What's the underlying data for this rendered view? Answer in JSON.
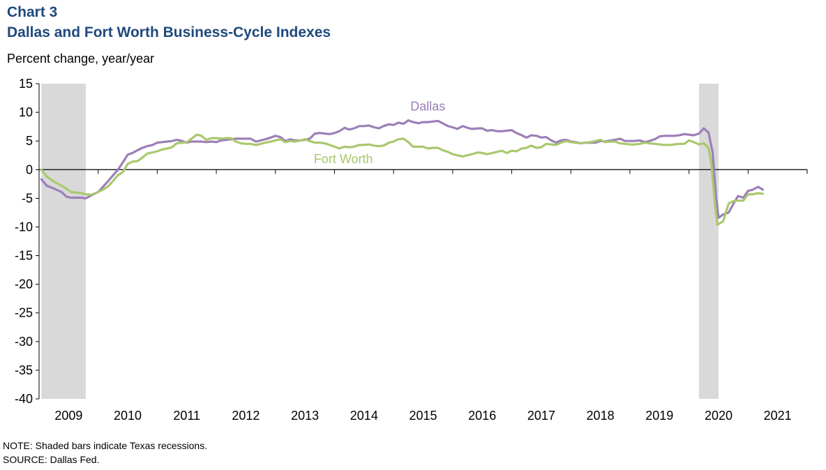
{
  "chart_data": {
    "type": "line",
    "chart_number": "Chart 3",
    "title": "Dallas and Fort Worth Business-Cycle Indexes",
    "ylabel": "Percent change,  year/year",
    "xlabel": "",
    "ylim": [
      -40,
      15
    ],
    "xlim": [
      2008.5,
      2021.5
    ],
    "yticks": [
      "15",
      "10",
      "5",
      "0",
      "-5",
      "-10",
      "-15",
      "-20",
      "-25",
      "-30",
      "-35",
      "-40"
    ],
    "xticks": [
      "2009",
      "2010",
      "2011",
      "2012",
      "2013",
      "2014",
      "2015",
      "2016",
      "2017",
      "2018",
      "2019",
      "2020",
      "2021"
    ],
    "grid": false,
    "recessions": [
      {
        "start": 2008.54,
        "end": 2009.29
      },
      {
        "start": 2019.67,
        "end": 2020.0
      }
    ],
    "series": [
      {
        "name": "Dallas",
        "color": "#9c7fb8",
        "points": [
          [
            2008.54,
            -1.7
          ],
          [
            2008.63,
            -2.8
          ],
          [
            2008.75,
            -3.3
          ],
          [
            2008.88,
            -3.9
          ],
          [
            2008.96,
            -4.7
          ],
          [
            2009.04,
            -4.9
          ],
          [
            2009.13,
            -4.9
          ],
          [
            2009.21,
            -4.9
          ],
          [
            2009.29,
            -5.0
          ],
          [
            2009.38,
            -4.5
          ],
          [
            2009.5,
            -3.9
          ],
          [
            2009.58,
            -3.0
          ],
          [
            2009.67,
            -2.0
          ],
          [
            2009.75,
            -1.0
          ],
          [
            2009.83,
            -0.1
          ],
          [
            2009.92,
            1.3
          ],
          [
            2010.0,
            2.6
          ],
          [
            2010.08,
            2.9
          ],
          [
            2010.17,
            3.4
          ],
          [
            2010.25,
            3.8
          ],
          [
            2010.33,
            4.1
          ],
          [
            2010.42,
            4.3
          ],
          [
            2010.5,
            4.7
          ],
          [
            2010.58,
            4.8
          ],
          [
            2010.67,
            4.9
          ],
          [
            2010.75,
            5.0
          ],
          [
            2010.83,
            5.2
          ],
          [
            2010.92,
            5.0
          ],
          [
            2011.0,
            4.7
          ],
          [
            2011.08,
            4.9
          ],
          [
            2011.17,
            4.9
          ],
          [
            2011.25,
            4.9
          ],
          [
            2011.33,
            4.8
          ],
          [
            2011.42,
            4.9
          ],
          [
            2011.5,
            4.8
          ],
          [
            2011.58,
            5.1
          ],
          [
            2011.67,
            5.2
          ],
          [
            2011.75,
            5.3
          ],
          [
            2011.83,
            5.4
          ],
          [
            2011.92,
            5.4
          ],
          [
            2012.0,
            5.4
          ],
          [
            2012.08,
            5.4
          ],
          [
            2012.17,
            4.9
          ],
          [
            2012.25,
            5.1
          ],
          [
            2012.33,
            5.3
          ],
          [
            2012.42,
            5.6
          ],
          [
            2012.5,
            5.9
          ],
          [
            2012.58,
            5.7
          ],
          [
            2012.67,
            5.0
          ],
          [
            2012.75,
            5.3
          ],
          [
            2012.83,
            5.1
          ],
          [
            2012.92,
            5.1
          ],
          [
            2013.0,
            5.2
          ],
          [
            2013.08,
            5.4
          ],
          [
            2013.17,
            6.3
          ],
          [
            2013.25,
            6.4
          ],
          [
            2013.33,
            6.3
          ],
          [
            2013.42,
            6.2
          ],
          [
            2013.5,
            6.4
          ],
          [
            2013.58,
            6.7
          ],
          [
            2013.67,
            7.3
          ],
          [
            2013.75,
            7.0
          ],
          [
            2013.83,
            7.2
          ],
          [
            2013.92,
            7.6
          ],
          [
            2014.0,
            7.6
          ],
          [
            2014.08,
            7.7
          ],
          [
            2014.17,
            7.4
          ],
          [
            2014.25,
            7.2
          ],
          [
            2014.33,
            7.6
          ],
          [
            2014.42,
            7.9
          ],
          [
            2014.5,
            7.8
          ],
          [
            2014.58,
            8.2
          ],
          [
            2014.67,
            8.0
          ],
          [
            2014.75,
            8.6
          ],
          [
            2014.83,
            8.3
          ],
          [
            2014.92,
            8.1
          ],
          [
            2015.0,
            8.3
          ],
          [
            2015.08,
            8.3
          ],
          [
            2015.17,
            8.4
          ],
          [
            2015.25,
            8.5
          ],
          [
            2015.33,
            8.1
          ],
          [
            2015.42,
            7.6
          ],
          [
            2015.5,
            7.4
          ],
          [
            2015.58,
            7.1
          ],
          [
            2015.67,
            7.6
          ],
          [
            2015.75,
            7.3
          ],
          [
            2015.83,
            7.1
          ],
          [
            2015.92,
            7.2
          ],
          [
            2016.0,
            7.2
          ],
          [
            2016.08,
            6.8
          ],
          [
            2016.17,
            6.9
          ],
          [
            2016.25,
            6.7
          ],
          [
            2016.33,
            6.7
          ],
          [
            2016.42,
            6.8
          ],
          [
            2016.5,
            6.9
          ],
          [
            2016.58,
            6.4
          ],
          [
            2016.67,
            6.0
          ],
          [
            2016.75,
            5.6
          ],
          [
            2016.83,
            6.0
          ],
          [
            2016.92,
            5.9
          ],
          [
            2017.0,
            5.6
          ],
          [
            2017.08,
            5.7
          ],
          [
            2017.17,
            5.1
          ],
          [
            2017.25,
            4.7
          ],
          [
            2017.33,
            5.1
          ],
          [
            2017.42,
            5.2
          ],
          [
            2017.5,
            4.9
          ],
          [
            2017.58,
            4.8
          ],
          [
            2017.67,
            4.6
          ],
          [
            2017.75,
            4.7
          ],
          [
            2017.83,
            4.7
          ],
          [
            2017.92,
            4.7
          ],
          [
            2018.0,
            5.0
          ],
          [
            2018.08,
            4.9
          ],
          [
            2018.17,
            5.1
          ],
          [
            2018.25,
            5.2
          ],
          [
            2018.33,
            5.4
          ],
          [
            2018.42,
            5.0
          ],
          [
            2018.5,
            5.0
          ],
          [
            2018.58,
            5.0
          ],
          [
            2018.67,
            5.1
          ],
          [
            2018.75,
            4.8
          ],
          [
            2018.83,
            5.0
          ],
          [
            2018.92,
            5.3
          ],
          [
            2019.0,
            5.8
          ],
          [
            2019.08,
            5.9
          ],
          [
            2019.17,
            5.9
          ],
          [
            2019.25,
            5.9
          ],
          [
            2019.33,
            6.0
          ],
          [
            2019.42,
            6.2
          ],
          [
            2019.5,
            6.1
          ],
          [
            2019.58,
            6.0
          ],
          [
            2019.67,
            6.3
          ],
          [
            2019.75,
            7.2
          ],
          [
            2019.83,
            6.5
          ],
          [
            2019.9,
            3.0
          ],
          [
            2019.96,
            -5.0
          ],
          [
            2020.0,
            -8.4
          ],
          [
            2020.08,
            -7.8
          ],
          [
            2020.17,
            -7.5
          ],
          [
            2020.25,
            -6.0
          ],
          [
            2020.33,
            -4.6
          ],
          [
            2020.42,
            -4.9
          ],
          [
            2020.5,
            -3.7
          ],
          [
            2020.58,
            -3.5
          ],
          [
            2020.67,
            -3.0
          ],
          [
            2020.75,
            -3.5
          ]
        ]
      },
      {
        "name": "Fort Worth",
        "color": "#a9c86d",
        "points": [
          [
            2008.54,
            0.0
          ],
          [
            2008.63,
            -1.2
          ],
          [
            2008.75,
            -2.1
          ],
          [
            2008.88,
            -2.8
          ],
          [
            2008.96,
            -3.3
          ],
          [
            2009.04,
            -3.9
          ],
          [
            2009.13,
            -4.0
          ],
          [
            2009.21,
            -4.1
          ],
          [
            2009.29,
            -4.3
          ],
          [
            2009.38,
            -4.4
          ],
          [
            2009.5,
            -3.9
          ],
          [
            2009.58,
            -3.5
          ],
          [
            2009.67,
            -2.9
          ],
          [
            2009.75,
            -2.0
          ],
          [
            2009.83,
            -1.0
          ],
          [
            2009.92,
            -0.4
          ],
          [
            2010.0,
            1.0
          ],
          [
            2010.08,
            1.4
          ],
          [
            2010.17,
            1.5
          ],
          [
            2010.25,
            2.1
          ],
          [
            2010.33,
            2.8
          ],
          [
            2010.42,
            3.0
          ],
          [
            2010.5,
            3.2
          ],
          [
            2010.58,
            3.5
          ],
          [
            2010.67,
            3.7
          ],
          [
            2010.75,
            3.9
          ],
          [
            2010.83,
            4.6
          ],
          [
            2010.92,
            4.7
          ],
          [
            2011.0,
            4.8
          ],
          [
            2011.08,
            5.4
          ],
          [
            2011.17,
            6.1
          ],
          [
            2011.25,
            5.9
          ],
          [
            2011.33,
            5.2
          ],
          [
            2011.42,
            5.5
          ],
          [
            2011.5,
            5.5
          ],
          [
            2011.58,
            5.4
          ],
          [
            2011.67,
            5.5
          ],
          [
            2011.75,
            5.5
          ],
          [
            2011.83,
            4.9
          ],
          [
            2011.92,
            4.6
          ],
          [
            2012.0,
            4.5
          ],
          [
            2012.08,
            4.5
          ],
          [
            2012.17,
            4.3
          ],
          [
            2012.25,
            4.5
          ],
          [
            2012.33,
            4.7
          ],
          [
            2012.42,
            4.9
          ],
          [
            2012.5,
            5.1
          ],
          [
            2012.58,
            5.3
          ],
          [
            2012.67,
            4.8
          ],
          [
            2012.75,
            5.0
          ],
          [
            2012.83,
            4.9
          ],
          [
            2012.92,
            5.1
          ],
          [
            2013.0,
            5.3
          ],
          [
            2013.08,
            5.0
          ],
          [
            2013.17,
            4.7
          ],
          [
            2013.25,
            4.7
          ],
          [
            2013.33,
            4.6
          ],
          [
            2013.42,
            4.3
          ],
          [
            2013.5,
            4.0
          ],
          [
            2013.58,
            3.7
          ],
          [
            2013.67,
            4.0
          ],
          [
            2013.75,
            3.9
          ],
          [
            2013.83,
            4.0
          ],
          [
            2013.92,
            4.3
          ],
          [
            2014.0,
            4.3
          ],
          [
            2014.08,
            4.4
          ],
          [
            2014.17,
            4.2
          ],
          [
            2014.25,
            4.1
          ],
          [
            2014.33,
            4.2
          ],
          [
            2014.42,
            4.7
          ],
          [
            2014.5,
            4.9
          ],
          [
            2014.58,
            5.3
          ],
          [
            2014.67,
            5.4
          ],
          [
            2014.75,
            4.8
          ],
          [
            2014.83,
            4.0
          ],
          [
            2014.92,
            4.0
          ],
          [
            2015.0,
            4.0
          ],
          [
            2015.08,
            3.7
          ],
          [
            2015.17,
            3.8
          ],
          [
            2015.25,
            3.8
          ],
          [
            2015.33,
            3.4
          ],
          [
            2015.42,
            3.1
          ],
          [
            2015.5,
            2.7
          ],
          [
            2015.58,
            2.5
          ],
          [
            2015.67,
            2.3
          ],
          [
            2015.75,
            2.5
          ],
          [
            2015.83,
            2.7
          ],
          [
            2015.92,
            3.0
          ],
          [
            2016.0,
            2.9
          ],
          [
            2016.08,
            2.7
          ],
          [
            2016.17,
            2.9
          ],
          [
            2016.25,
            3.1
          ],
          [
            2016.33,
            3.3
          ],
          [
            2016.42,
            2.9
          ],
          [
            2016.5,
            3.3
          ],
          [
            2016.58,
            3.2
          ],
          [
            2016.67,
            3.7
          ],
          [
            2016.75,
            3.8
          ],
          [
            2016.83,
            4.2
          ],
          [
            2016.92,
            3.8
          ],
          [
            2017.0,
            3.9
          ],
          [
            2017.08,
            4.5
          ],
          [
            2017.17,
            4.4
          ],
          [
            2017.25,
            4.3
          ],
          [
            2017.33,
            4.7
          ],
          [
            2017.42,
            5.0
          ],
          [
            2017.5,
            4.8
          ],
          [
            2017.58,
            4.7
          ],
          [
            2017.67,
            4.6
          ],
          [
            2017.75,
            4.7
          ],
          [
            2017.83,
            4.8
          ],
          [
            2017.92,
            5.0
          ],
          [
            2018.0,
            5.2
          ],
          [
            2018.08,
            4.8
          ],
          [
            2018.17,
            4.9
          ],
          [
            2018.25,
            4.9
          ],
          [
            2018.33,
            4.6
          ],
          [
            2018.42,
            4.5
          ],
          [
            2018.5,
            4.4
          ],
          [
            2018.58,
            4.4
          ],
          [
            2018.67,
            4.5
          ],
          [
            2018.75,
            4.7
          ],
          [
            2018.83,
            4.6
          ],
          [
            2018.92,
            4.5
          ],
          [
            2019.0,
            4.4
          ],
          [
            2019.08,
            4.3
          ],
          [
            2019.17,
            4.3
          ],
          [
            2019.25,
            4.4
          ],
          [
            2019.33,
            4.5
          ],
          [
            2019.42,
            4.5
          ],
          [
            2019.5,
            5.1
          ],
          [
            2019.58,
            4.8
          ],
          [
            2019.67,
            4.4
          ],
          [
            2019.75,
            4.6
          ],
          [
            2019.83,
            3.8
          ],
          [
            2019.88,
            1.0
          ],
          [
            2019.94,
            -6.0
          ],
          [
            2019.98,
            -9.6
          ],
          [
            2020.08,
            -9.0
          ],
          [
            2020.17,
            -5.9
          ],
          [
            2020.25,
            -5.5
          ],
          [
            2020.33,
            -5.4
          ],
          [
            2020.42,
            -5.4
          ],
          [
            2020.5,
            -4.3
          ],
          [
            2020.58,
            -4.3
          ],
          [
            2020.67,
            -4.1
          ],
          [
            2020.75,
            -4.2
          ]
        ]
      }
    ]
  },
  "note": "NOTE:  Shaded bars indicate Texas  recessions.",
  "source": "SOURCE:  Dallas Fed."
}
